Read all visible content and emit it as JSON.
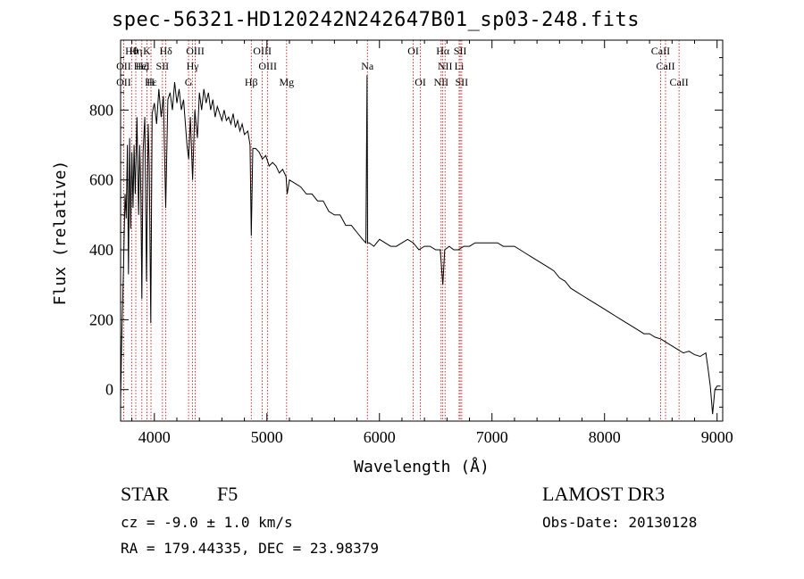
{
  "chart_data": {
    "type": "line",
    "title": "spec-56321-HD120242N242647B01_sp03-248.fits",
    "xlabel": "Wavelength (Å)",
    "ylabel": "Flux (relative)",
    "xlim": [
      3700,
      9050
    ],
    "ylim": [
      -90,
      1000
    ],
    "x_ticks": [
      4000,
      5000,
      6000,
      7000,
      8000,
      9000
    ],
    "y_ticks": [
      0,
      200,
      400,
      600,
      800
    ],
    "x_tick_labels": [
      "4000",
      "5000",
      "6000",
      "7000",
      "8000",
      "9000"
    ],
    "y_tick_labels": [
      "0",
      "200",
      "400",
      "600",
      "800"
    ],
    "series": [
      {
        "name": "spectrum",
        "points": [
          [
            3700,
            -30
          ],
          [
            3710,
            150
          ],
          [
            3725,
            330
          ],
          [
            3740,
            560
          ],
          [
            3750,
            490
          ],
          [
            3760,
            700
          ],
          [
            3770,
            330
          ],
          [
            3780,
            720
          ],
          [
            3790,
            460
          ],
          [
            3800,
            680
          ],
          [
            3810,
            520
          ],
          [
            3820,
            700
          ],
          [
            3830,
            560
          ],
          [
            3845,
            780
          ],
          [
            3860,
            500
          ],
          [
            3870,
            700
          ],
          [
            3880,
            560
          ],
          [
            3889,
            260
          ],
          [
            3900,
            680
          ],
          [
            3915,
            780
          ],
          [
            3930,
            310
          ],
          [
            3945,
            760
          ],
          [
            3955,
            640
          ],
          [
            3968,
            190
          ],
          [
            3980,
            790
          ],
          [
            4000,
            820
          ],
          [
            4020,
            760
          ],
          [
            4040,
            860
          ],
          [
            4060,
            780
          ],
          [
            4080,
            840
          ],
          [
            4101,
            520
          ],
          [
            4120,
            830
          ],
          [
            4140,
            850
          ],
          [
            4160,
            800
          ],
          [
            4180,
            880
          ],
          [
            4200,
            820
          ],
          [
            4220,
            860
          ],
          [
            4240,
            800
          ],
          [
            4260,
            830
          ],
          [
            4290,
            700
          ],
          [
            4305,
            660
          ],
          [
            4320,
            780
          ],
          [
            4340,
            600
          ],
          [
            4360,
            800
          ],
          [
            4383,
            720
          ],
          [
            4400,
            850
          ],
          [
            4420,
            800
          ],
          [
            4440,
            860
          ],
          [
            4460,
            820
          ],
          [
            4480,
            850
          ],
          [
            4500,
            800
          ],
          [
            4520,
            830
          ],
          [
            4540,
            780
          ],
          [
            4560,
            810
          ],
          [
            4580,
            790
          ],
          [
            4600,
            770
          ],
          [
            4620,
            800
          ],
          [
            4640,
            770
          ],
          [
            4660,
            780
          ],
          [
            4680,
            760
          ],
          [
            4700,
            790
          ],
          [
            4720,
            750
          ],
          [
            4740,
            770
          ],
          [
            4760,
            740
          ],
          [
            4780,
            760
          ],
          [
            4800,
            730
          ],
          [
            4830,
            740
          ],
          [
            4850,
            700
          ],
          [
            4861,
            440
          ],
          [
            4875,
            690
          ],
          [
            4900,
            690
          ],
          [
            4930,
            680
          ],
          [
            4960,
            660
          ],
          [
            4990,
            670
          ],
          [
            5020,
            640
          ],
          [
            5050,
            650
          ],
          [
            5080,
            640
          ],
          [
            5110,
            620
          ],
          [
            5140,
            630
          ],
          [
            5170,
            610
          ],
          [
            5180,
            560
          ],
          [
            5200,
            600
          ],
          [
            5250,
            590
          ],
          [
            5300,
            580
          ],
          [
            5350,
            560
          ],
          [
            5400,
            560
          ],
          [
            5450,
            540
          ],
          [
            5500,
            540
          ],
          [
            5550,
            510
          ],
          [
            5600,
            500
          ],
          [
            5650,
            500
          ],
          [
            5700,
            470
          ],
          [
            5750,
            470
          ],
          [
            5800,
            450
          ],
          [
            5850,
            430
          ],
          [
            5880,
            420
          ],
          [
            5890,
            900
          ],
          [
            5895,
            420
          ],
          [
            5910,
            420
          ],
          [
            5950,
            410
          ],
          [
            6000,
            430
          ],
          [
            6050,
            420
          ],
          [
            6100,
            410
          ],
          [
            6150,
            410
          ],
          [
            6200,
            420
          ],
          [
            6250,
            430
          ],
          [
            6300,
            420
          ],
          [
            6350,
            400
          ],
          [
            6400,
            410
          ],
          [
            6450,
            410
          ],
          [
            6500,
            400
          ],
          [
            6540,
            400
          ],
          [
            6563,
            300
          ],
          [
            6580,
            400
          ],
          [
            6620,
            410
          ],
          [
            6660,
            400
          ],
          [
            6700,
            400
          ],
          [
            6750,
            410
          ],
          [
            6800,
            410
          ],
          [
            6850,
            420
          ],
          [
            6900,
            420
          ],
          [
            6950,
            420
          ],
          [
            7000,
            420
          ],
          [
            7050,
            420
          ],
          [
            7100,
            410
          ],
          [
            7150,
            410
          ],
          [
            7200,
            410
          ],
          [
            7250,
            400
          ],
          [
            7300,
            390
          ],
          [
            7350,
            380
          ],
          [
            7400,
            370
          ],
          [
            7450,
            360
          ],
          [
            7500,
            350
          ],
          [
            7550,
            340
          ],
          [
            7600,
            320
          ],
          [
            7650,
            310
          ],
          [
            7700,
            290
          ],
          [
            7750,
            280
          ],
          [
            7800,
            270
          ],
          [
            7850,
            260
          ],
          [
            7900,
            250
          ],
          [
            7950,
            240
          ],
          [
            8000,
            230
          ],
          [
            8050,
            220
          ],
          [
            8100,
            210
          ],
          [
            8150,
            200
          ],
          [
            8200,
            190
          ],
          [
            8250,
            180
          ],
          [
            8300,
            170
          ],
          [
            8350,
            160
          ],
          [
            8400,
            160
          ],
          [
            8450,
            150
          ],
          [
            8500,
            145
          ],
          [
            8550,
            135
          ],
          [
            8600,
            125
          ],
          [
            8650,
            115
          ],
          [
            8700,
            105
          ],
          [
            8750,
            110
          ],
          [
            8800,
            100
          ],
          [
            8850,
            95
          ],
          [
            8900,
            105
          ],
          [
            8920,
            60
          ],
          [
            8940,
            10
          ],
          [
            8960,
            -70
          ],
          [
            8980,
            0
          ],
          [
            9000,
            10
          ],
          [
            9030,
            10
          ]
        ]
      }
    ],
    "line_markers": [
      {
        "label": "Hθ",
        "x": 3798,
        "row": 1
      },
      {
        "label": "Hη",
        "x": 3835,
        "row": 1
      },
      {
        "label": "K",
        "x": 3934,
        "row": 1
      },
      {
        "label": "Hδ",
        "x": 4102,
        "row": 1
      },
      {
        "label": "OIII",
        "x": 4363,
        "row": 1
      },
      {
        "label": "OIII",
        "x": 4959,
        "row": 1
      },
      {
        "label": "OI",
        "x": 6300,
        "row": 1
      },
      {
        "label": "Hα",
        "x": 6563,
        "row": 1
      },
      {
        "label": "SII",
        "x": 6717,
        "row": 1
      },
      {
        "label": "CaII",
        "x": 8498,
        "row": 1
      },
      {
        "label": "OII",
        "x": 3727,
        "row": 2
      },
      {
        "label": "Hζ",
        "x": 3889,
        "row": 2
      },
      {
        "label": "HeI",
        "x": 3889,
        "row": 2
      },
      {
        "label": "SII",
        "x": 4072,
        "row": 2
      },
      {
        "label": "Hγ",
        "x": 4340,
        "row": 2
      },
      {
        "label": "OIII",
        "x": 5007,
        "row": 2
      },
      {
        "label": "Na",
        "x": 5893,
        "row": 2
      },
      {
        "label": "NII",
        "x": 6583,
        "row": 2
      },
      {
        "label": "Li",
        "x": 6708,
        "row": 2
      },
      {
        "label": "CaII",
        "x": 8542,
        "row": 2
      },
      {
        "label": "OII",
        "x": 3727,
        "row": 3
      },
      {
        "label": "Hε",
        "x": 3970,
        "row": 3
      },
      {
        "label": "H",
        "x": 3968,
        "row": 3
      },
      {
        "label": "G",
        "x": 4304,
        "row": 3
      },
      {
        "label": "Hβ",
        "x": 4861,
        "row": 3
      },
      {
        "label": "Mg",
        "x": 5175,
        "row": 3
      },
      {
        "label": "OI",
        "x": 6364,
        "row": 3
      },
      {
        "label": "NII",
        "x": 6548,
        "row": 3
      },
      {
        "label": "SII",
        "x": 6731,
        "row": 3
      },
      {
        "label": "CaII",
        "x": 8662,
        "row": 3
      }
    ]
  },
  "info": {
    "class_label": "STAR",
    "subclass": "F5",
    "survey": "LAMOST DR3",
    "cz": "cz = -9.0 ± 1.0 km/s",
    "obs_date": "Obs-Date: 20130128",
    "coords": "RA = 179.44335, DEC =  23.98379"
  }
}
